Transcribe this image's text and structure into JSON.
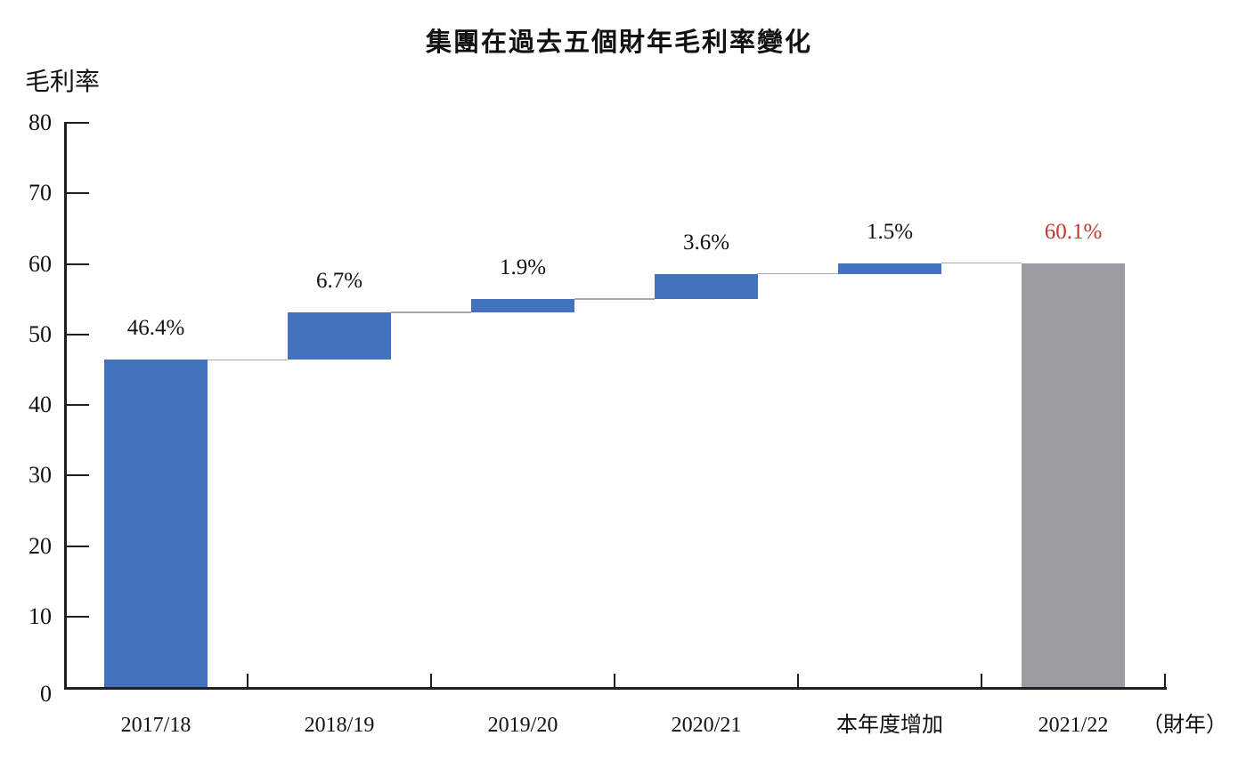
{
  "title": "集團在過去五個財年毛利率變化",
  "y_axis_title": "毛利率",
  "x_axis_unit": "（財年）",
  "chart_data": {
    "type": "bar",
    "subtype": "waterfall",
    "title": "集團在過去五個財年毛利率變化",
    "ylabel": "毛利率",
    "xlabel_unit": "（財年）",
    "ylim": [
      0,
      80
    ],
    "y_ticks": [
      0,
      10,
      20,
      30,
      40,
      50,
      60,
      70,
      80
    ],
    "grid": false,
    "legend": false,
    "categories": [
      "2017/18",
      "2018/19",
      "2019/20",
      "2020/21",
      "本年度增加",
      "2021/22"
    ],
    "steps": [
      {
        "category": "2017/18",
        "label": "46.4%",
        "value": 46.4,
        "start": 0,
        "end": 46.4,
        "role": "increase"
      },
      {
        "category": "2018/19",
        "label": "6.7%",
        "value": 6.7,
        "start": 46.4,
        "end": 53.1,
        "role": "increase"
      },
      {
        "category": "2019/20",
        "label": "1.9%",
        "value": 1.9,
        "start": 53.1,
        "end": 55.0,
        "role": "increase"
      },
      {
        "category": "2020/21",
        "label": "3.6%",
        "value": 3.6,
        "start": 55.0,
        "end": 58.6,
        "role": "increase"
      },
      {
        "category": "本年度增加",
        "label": "1.5%",
        "value": 1.5,
        "start": 58.6,
        "end": 60.1,
        "role": "increase"
      },
      {
        "category": "2021/22",
        "label": "60.1%",
        "value": 60.1,
        "start": 0,
        "end": 60.1,
        "role": "total"
      }
    ],
    "colors": {
      "increase_bar": "#4473BD",
      "total_bar": "#9C9DA3",
      "total_label_text": "#C0392B",
      "axis": "#1F1F1F",
      "connector": "#A9A9A9",
      "text": "#111111"
    }
  }
}
